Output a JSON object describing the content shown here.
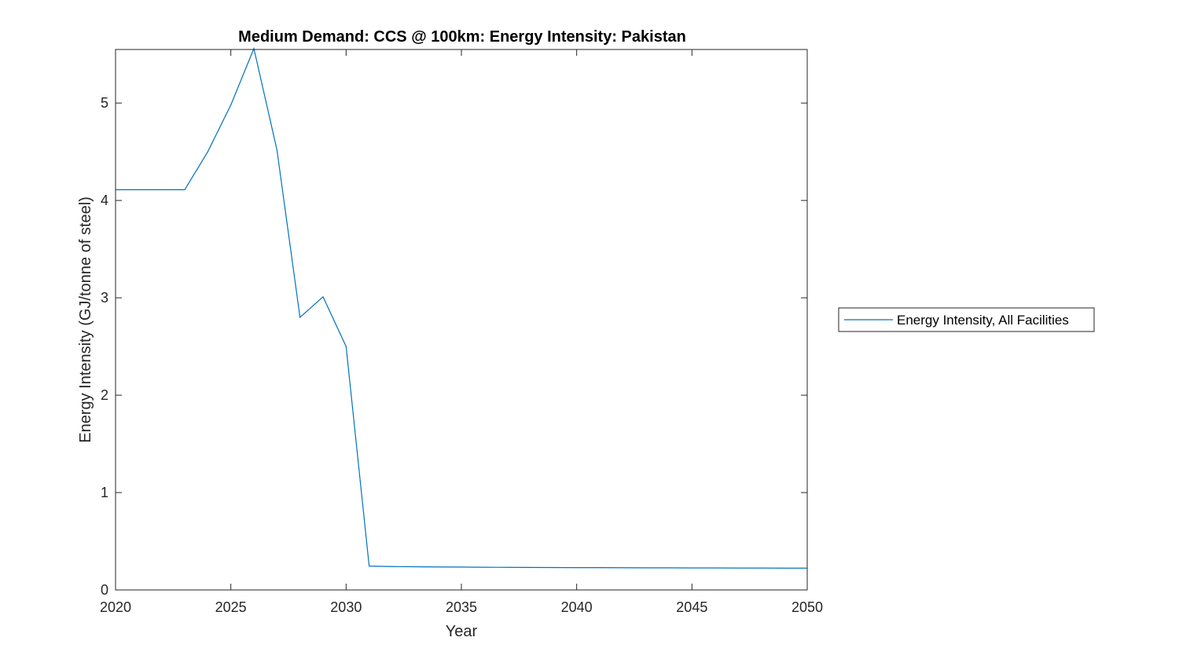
{
  "chart_data": {
    "type": "line",
    "title": "Medium Demand: CCS @ 100km: Energy Intensity: Pakistan",
    "xlabel": "Year",
    "ylabel": "Energy Intensity (GJ/tonne of steel)",
    "xlim": [
      2020,
      2050
    ],
    "ylim": [
      0,
      5.55
    ],
    "xticks": [
      2020,
      2025,
      2030,
      2035,
      2040,
      2045,
      2050
    ],
    "yticks": [
      0,
      1,
      2,
      3,
      4,
      5
    ],
    "grid": false,
    "legend_position": "outside-right",
    "series": [
      {
        "name": "Energy Intensity, All Facilities",
        "color": "#0072BD",
        "x": [
          2020,
          2021,
          2022,
          2023,
          2024,
          2025,
          2026,
          2027,
          2028,
          2029,
          2030,
          2031,
          2032,
          2033,
          2034,
          2035,
          2036,
          2037,
          2038,
          2039,
          2040,
          2041,
          2042,
          2043,
          2044,
          2045,
          2046,
          2047,
          2048,
          2049,
          2050
        ],
        "y": [
          4.11,
          4.11,
          4.11,
          4.11,
          4.5,
          4.98,
          5.56,
          4.52,
          2.8,
          3.01,
          2.5,
          0.245,
          0.24,
          0.238,
          0.236,
          0.235,
          0.233,
          0.232,
          0.231,
          0.23,
          0.229,
          0.229,
          0.228,
          0.227,
          0.227,
          0.226,
          0.226,
          0.225,
          0.225,
          0.224,
          0.224
        ]
      }
    ]
  }
}
